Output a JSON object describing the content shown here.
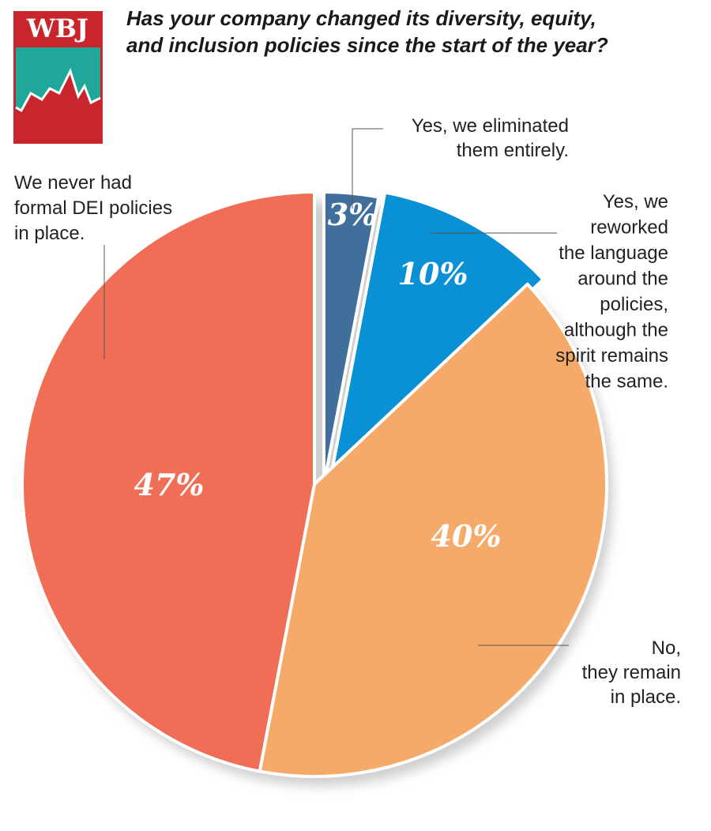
{
  "brand": {
    "logo_text": "WBJ",
    "colors": {
      "red": "#c8252c",
      "teal": "#1fa899",
      "white": "#ffffff"
    }
  },
  "chart_data": {
    "type": "pie",
    "title_lines": [
      "Has your company changed its diversity, equity,",
      "and inclusion policies since the start of the year?"
    ],
    "slices": [
      {
        "value": 3,
        "value_label": "3%",
        "color": "#3f6f9a",
        "label_lines": [
          "Yes, we eliminated",
          "them entirely."
        ]
      },
      {
        "value": 10,
        "value_label": "10%",
        "color": "#0a90d4",
        "label_lines": [
          "Yes, we",
          "reworked",
          "the language",
          "around the",
          "policies,",
          "although the",
          "spirit remains",
          "the same."
        ]
      },
      {
        "value": 40,
        "value_label": "40%",
        "color": "#f6aa6a",
        "label_lines": [
          "No,",
          "they remain",
          "in place."
        ]
      },
      {
        "value": 47,
        "value_label": "47%",
        "color": "#f06e55",
        "label_lines": [
          "We never had",
          "formal DEI policies",
          "in place."
        ]
      }
    ]
  }
}
